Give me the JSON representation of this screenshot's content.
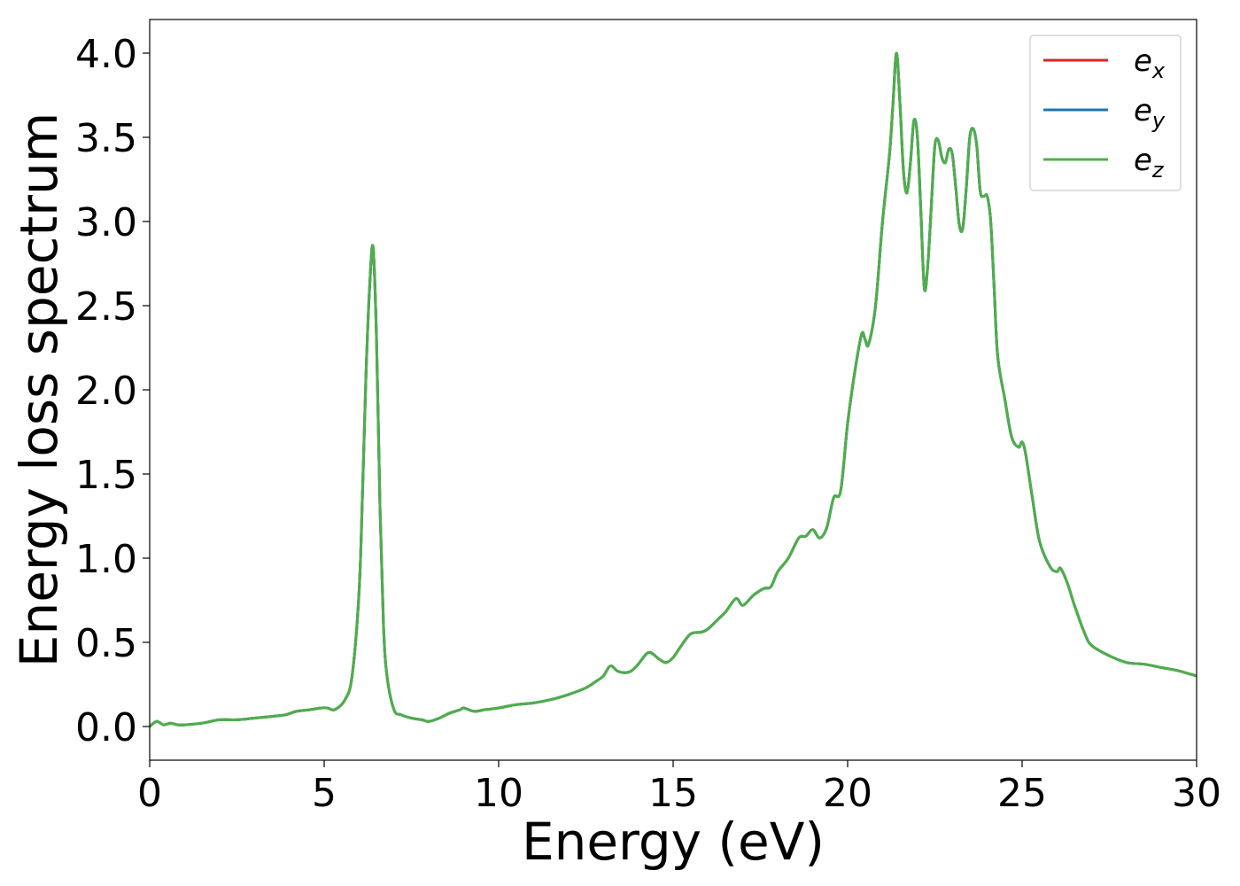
{
  "chart_data": {
    "type": "line",
    "title": "",
    "xlabel": "Energy (eV)",
    "ylabel": "Energy loss spectrum",
    "xlim": [
      0,
      30
    ],
    "ylim": [
      -0.2,
      4.2
    ],
    "xticks": [
      0,
      5,
      10,
      15,
      20,
      25,
      30
    ],
    "xtick_labels": [
      "0",
      "5",
      "10",
      "15",
      "20",
      "25",
      "30"
    ],
    "yticks": [
      0.0,
      0.5,
      1.0,
      1.5,
      2.0,
      2.5,
      3.0,
      3.5,
      4.0
    ],
    "ytick_labels": [
      "0.0",
      "0.5",
      "1.0",
      "1.5",
      "2.0",
      "2.5",
      "3.0",
      "3.5",
      "4.0"
    ],
    "grid": false,
    "legend_position": "top-right",
    "series": [
      {
        "name": "e_x",
        "legend_base": "e",
        "legend_sub": "x",
        "color": "#d62728"
      },
      {
        "name": "e_y",
        "legend_base": "e",
        "legend_sub": "y",
        "color": "#1f77b4"
      },
      {
        "name": "e_z",
        "legend_base": "e",
        "legend_sub": "z",
        "color": "#4daf4a"
      }
    ],
    "shared_curve_note": "all three series coincide; e_z drawn on top",
    "x": [
      0,
      0.2,
      0.4,
      0.6,
      0.8,
      1.0,
      1.5,
      2.0,
      2.5,
      3.0,
      3.5,
      3.9,
      4.2,
      4.6,
      4.9,
      5.1,
      5.3,
      5.6,
      5.8,
      6.0,
      6.1,
      6.2,
      6.3,
      6.4,
      6.5,
      6.6,
      6.7,
      6.8,
      7.0,
      7.2,
      7.5,
      7.8,
      8.0,
      8.3,
      8.6,
      8.9,
      9.0,
      9.3,
      9.6,
      10.0,
      10.5,
      11.0,
      11.5,
      12.0,
      12.5,
      12.8,
      13.0,
      13.2,
      13.4,
      13.6,
      13.8,
      14.0,
      14.3,
      14.6,
      14.8,
      15.0,
      15.2,
      15.5,
      15.8,
      16.0,
      16.3,
      16.5,
      16.8,
      17.0,
      17.3,
      17.6,
      17.8,
      18.0,
      18.3,
      18.6,
      18.8,
      19.0,
      19.2,
      19.4,
      19.6,
      19.8,
      20.0,
      20.2,
      20.4,
      20.5,
      20.6,
      20.8,
      21.0,
      21.2,
      21.3,
      21.4,
      21.5,
      21.6,
      21.7,
      21.8,
      21.9,
      22.0,
      22.1,
      22.2,
      22.3,
      22.4,
      22.5,
      22.6,
      22.7,
      22.8,
      22.9,
      23.0,
      23.1,
      23.2,
      23.3,
      23.4,
      23.5,
      23.6,
      23.7,
      23.8,
      23.9,
      24.0,
      24.1,
      24.2,
      24.3,
      24.5,
      24.7,
      24.9,
      25.0,
      25.1,
      25.3,
      25.5,
      25.8,
      26.0,
      26.1,
      26.3,
      26.5,
      26.8,
      27.0,
      27.5,
      28.0,
      28.5,
      29.0,
      29.5,
      30.0
    ],
    "y": [
      0.0,
      0.03,
      0.01,
      0.02,
      0.01,
      0.01,
      0.02,
      0.04,
      0.04,
      0.05,
      0.06,
      0.07,
      0.09,
      0.1,
      0.11,
      0.11,
      0.1,
      0.16,
      0.3,
      0.8,
      1.4,
      2.1,
      2.6,
      2.85,
      2.3,
      1.3,
      0.6,
      0.3,
      0.1,
      0.07,
      0.05,
      0.04,
      0.03,
      0.05,
      0.08,
      0.1,
      0.11,
      0.09,
      0.1,
      0.11,
      0.13,
      0.14,
      0.16,
      0.19,
      0.23,
      0.27,
      0.3,
      0.36,
      0.33,
      0.32,
      0.33,
      0.37,
      0.44,
      0.4,
      0.38,
      0.41,
      0.47,
      0.55,
      0.56,
      0.58,
      0.64,
      0.68,
      0.76,
      0.72,
      0.78,
      0.82,
      0.83,
      0.92,
      1.0,
      1.12,
      1.13,
      1.17,
      1.12,
      1.18,
      1.36,
      1.4,
      1.8,
      2.1,
      2.33,
      2.3,
      2.27,
      2.5,
      3.0,
      3.4,
      3.7,
      4.0,
      3.7,
      3.3,
      3.17,
      3.35,
      3.6,
      3.5,
      3.05,
      2.6,
      2.75,
      3.1,
      3.45,
      3.48,
      3.38,
      3.35,
      3.43,
      3.4,
      3.2,
      2.98,
      2.96,
      3.2,
      3.5,
      3.55,
      3.45,
      3.18,
      3.15,
      3.15,
      3.0,
      2.6,
      2.2,
      1.95,
      1.72,
      1.66,
      1.69,
      1.62,
      1.35,
      1.1,
      0.95,
      0.92,
      0.94,
      0.85,
      0.72,
      0.55,
      0.48,
      0.42,
      0.38,
      0.37,
      0.35,
      0.33,
      0.3
    ]
  }
}
